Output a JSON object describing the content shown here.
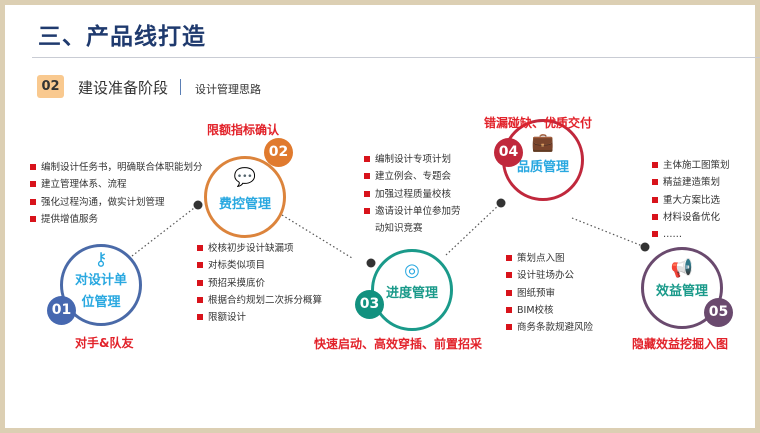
{
  "title": "三、产品线打造",
  "section": {
    "number": "02",
    "name": "建设准备阶段",
    "subtitle": "设计管理思路"
  },
  "nodes": [
    {
      "number": "01",
      "label_line1": "对设计单",
      "label_line2": "位管理",
      "tagline": "对手&队友",
      "icon": "key-icon",
      "color": "#4a6aa8"
    },
    {
      "number": "02",
      "label": "费控管理",
      "tagline": "限额指标确认",
      "icon": "chat-icon",
      "color": "#dc843c"
    },
    {
      "number": "03",
      "label": "进度管理",
      "tagline": "快速启动、高效穿插、前置招采",
      "icon": "target-icon",
      "color": "#1a9a8a"
    },
    {
      "number": "04",
      "label": "品质管理",
      "tagline": "错漏碰缺、优质交付",
      "icon": "briefcase-icon",
      "color": "#c0283c"
    },
    {
      "number": "05",
      "label": "效益管理",
      "tagline": "隐藏效益挖掘入图",
      "icon": "megaphone-icon",
      "color": "#6a4a6e"
    }
  ],
  "lists": {
    "l1": [
      "编制设计任务书，明确联合体职能划分",
      "建立管理体系、流程",
      "强化过程沟通，做实计划管理",
      "提供增值服务"
    ],
    "l2": [
      "校核初步设计缺漏项",
      "对标类似项目",
      "预招采摸底价",
      "根据合约规划二次拆分概算",
      "限额设计"
    ],
    "l3": [
      "编制设计专项计划",
      "建立例会、专题会",
      "加强过程质量校核",
      "邀请设计单位参加劳"
    ],
    "l3_cont": "动知识竞赛",
    "l4": [
      "策划点入图",
      "设计驻场办公",
      "图纸预审",
      "BIM校核",
      "商务条款规避风险"
    ],
    "l5": [
      "主体施工图策划",
      "精益建造策划",
      "重大方案比选",
      "材料设备优化",
      "……"
    ]
  },
  "colors": {
    "title": "#1f3a6e",
    "accent_red": "#e2222a",
    "label_cyan": "#29a8e0",
    "badge": "#f9c98f"
  }
}
